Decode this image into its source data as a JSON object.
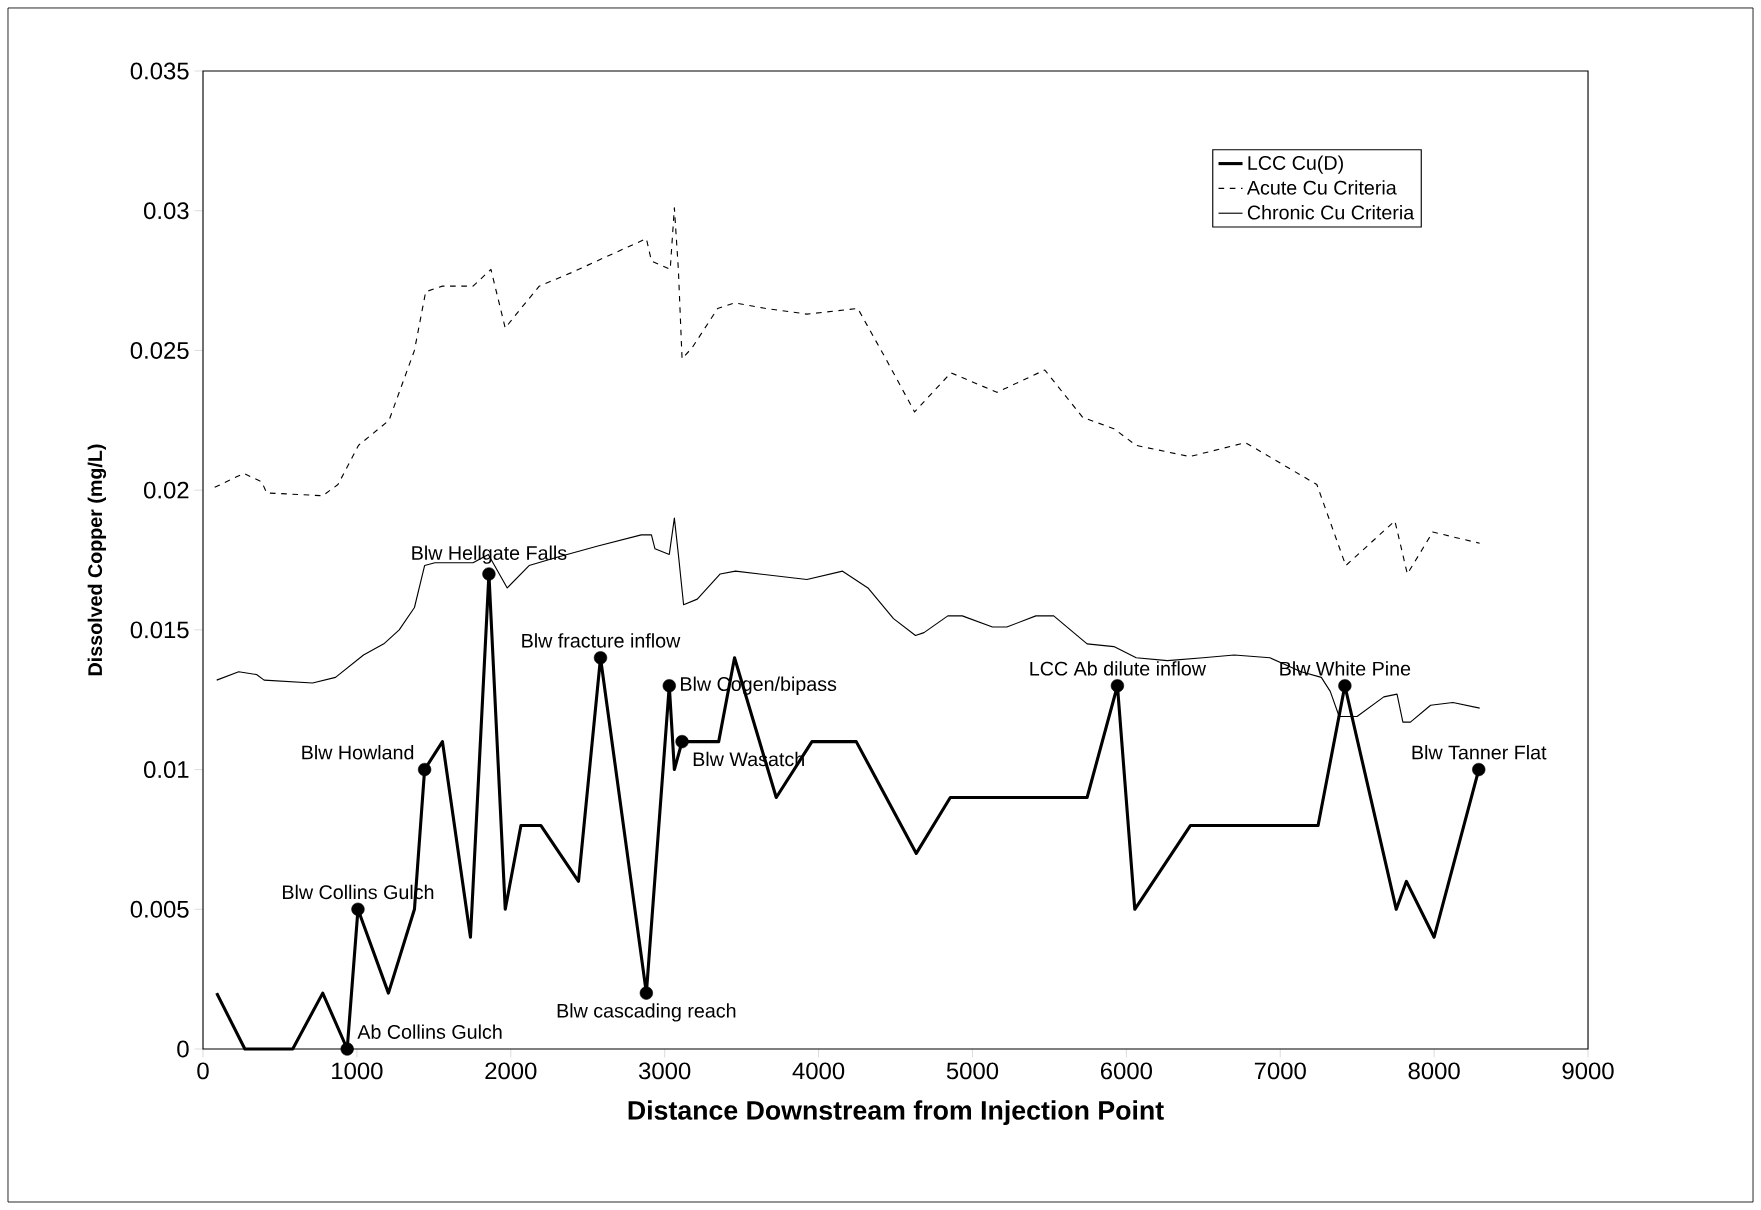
{
  "chart_data": {
    "type": "line",
    "xlabel": "Distance Downstream from Injection Point",
    "ylabel": "Dissolved Copper (mg/L)",
    "xlim": [
      0,
      9000
    ],
    "xticks": [
      0,
      1000,
      2000,
      3000,
      4000,
      5000,
      6000,
      7000,
      8000,
      9000
    ],
    "ylim": [
      0,
      0.035
    ],
    "yticks": [
      0,
      0.005,
      0.01,
      0.015,
      0.02,
      0.025,
      0.03,
      0.035
    ],
    "grid": false,
    "legend": "top right",
    "marker": "none",
    "series": [
      {
        "name": "LCC Cu(D)",
        "color": "#000000",
        "line_style": "solid",
        "x": [
          89,
          272,
          583,
          778,
          937,
          1007,
          1205,
          1374,
          1440,
          1556,
          1738,
          1858,
          1964,
          2066,
          2195,
          2440,
          2583,
          2881,
          3030,
          3063,
          3113,
          3351,
          3454,
          3725,
          3957,
          4245,
          4635,
          4856,
          5745,
          5942,
          6055,
          6417,
          7246,
          7420,
          7754,
          7820,
          8000,
          8290
        ],
        "values": [
          0.002,
          0,
          0,
          0.002,
          0,
          0.005,
          0.002,
          0.005,
          0.01,
          0.011,
          0.004,
          0.017,
          0.005,
          0.008,
          0.008,
          0.006,
          0.014,
          0.002,
          0.013,
          0.01,
          0.011,
          0.011,
          0.014,
          0.009,
          0.011,
          0.011,
          0.007,
          0.009,
          0.009,
          0.013,
          0.005,
          0.008,
          0.008,
          0.013,
          0.005,
          0.006,
          0.004,
          0.01
        ]
      },
      {
        "name": "Acute Cu Criteria",
        "color": "#000000",
        "line_style": "dashed",
        "x": [
          76,
          265,
          381,
          414,
          778,
          877,
          1010,
          1209,
          1374,
          1447,
          1556,
          1755,
          1871,
          1964,
          2036,
          2185,
          2401,
          2599,
          2881,
          2914,
          3036,
          3063,
          3089,
          3113,
          3179,
          3344,
          3454,
          3659,
          3924,
          4255,
          4437,
          4624,
          4860,
          5159,
          5470,
          5717,
          5919,
          6064,
          6412,
          6774,
          7238,
          7426,
          7745,
          7826,
          7991,
          8296
        ],
        "values": [
          0.0201,
          0.0206,
          0.0203,
          0.0199,
          0.0198,
          0.0202,
          0.0216,
          0.0225,
          0.025,
          0.0271,
          0.0273,
          0.0273,
          0.0279,
          0.0258,
          0.0263,
          0.0273,
          0.0278,
          0.0283,
          0.029,
          0.0282,
          0.0279,
          0.0301,
          0.0279,
          0.0247,
          0.0251,
          0.0265,
          0.0267,
          0.0265,
          0.0263,
          0.0265,
          0.0247,
          0.0228,
          0.0242,
          0.0235,
          0.0243,
          0.0226,
          0.0222,
          0.0216,
          0.0212,
          0.0217,
          0.0202,
          0.0173,
          0.0189,
          0.017,
          0.0185,
          0.0181
        ]
      },
      {
        "name": "Chronic Cu Criteria",
        "color": "#000000",
        "line_style": "solid",
        "x": [
          89,
          232,
          348,
          397,
          712,
          861,
          1043,
          1175,
          1275,
          1374,
          1440,
          1507,
          1755,
          1854,
          1977,
          2119,
          2301,
          2566,
          2848,
          2914,
          2937,
          3030,
          3063,
          3089,
          3123,
          3212,
          3361,
          3460,
          3924,
          4156,
          4321,
          4487,
          4630,
          4685,
          4840,
          4934,
          5130,
          5223,
          5412,
          5528,
          5745,
          5919,
          6064,
          6267,
          6499,
          6701,
          6933,
          7136,
          7267,
          7325,
          7383,
          7499,
          7673,
          7759,
          7797,
          7846,
          7977,
          8122,
          8296
        ],
        "values": [
          0.0132,
          0.0135,
          0.0134,
          0.0132,
          0.0131,
          0.0133,
          0.0141,
          0.0145,
          0.015,
          0.0158,
          0.0173,
          0.0174,
          0.0174,
          0.0177,
          0.0165,
          0.0173,
          0.0176,
          0.018,
          0.0184,
          0.0184,
          0.0179,
          0.0177,
          0.019,
          0.0177,
          0.0159,
          0.0161,
          0.017,
          0.0171,
          0.0168,
          0.0171,
          0.0165,
          0.0154,
          0.0148,
          0.0149,
          0.0155,
          0.0155,
          0.0151,
          0.0151,
          0.0155,
          0.0155,
          0.0145,
          0.0144,
          0.014,
          0.0139,
          0.014,
          0.0141,
          0.014,
          0.0135,
          0.0133,
          0.0128,
          0.0119,
          0.0119,
          0.0126,
          0.0127,
          0.0117,
          0.0117,
          0.0123,
          0.0124,
          0.0122
        ]
      },
      {
        "type": "scatter",
        "color": "#000000",
        "marker": "circle",
        "x": [
          937,
          1007,
          1440,
          1858,
          2583,
          2881,
          3030,
          3113,
          5942,
          7420,
          8290
        ],
        "values": [
          0,
          0.005,
          0.01,
          0.017,
          0.014,
          0.002,
          0.013,
          0.011,
          0.013,
          0.013,
          0.01
        ]
      }
    ],
    "annotations": [
      {
        "text": "Ab Collins Gulch",
        "x": 937,
        "y": 0
      },
      {
        "text": "Blw Collins Gulch",
        "x": 1007,
        "y": 0.005
      },
      {
        "text": "Blw Howland",
        "x": 1440,
        "y": 0.01
      },
      {
        "text": "Blw Hellgate Falls",
        "x": 1858,
        "y": 0.017
      },
      {
        "text": "Blw fracture inflow",
        "x": 2583,
        "y": 0.014
      },
      {
        "text": "Blw cascading reach",
        "x": 2881,
        "y": 0.002
      },
      {
        "text": "Blw Cogen/bipass",
        "x": 3030,
        "y": 0.013
      },
      {
        "text": "Blw Wasatch",
        "x": 3113,
        "y": 0.011
      },
      {
        "text": "LCC Ab dilute inflow",
        "x": 5942,
        "y": 0.013
      },
      {
        "text": "Blw White Pine",
        "x": 7420,
        "y": 0.013
      },
      {
        "text": "Blw Tanner Flat",
        "x": 8290,
        "y": 0.01
      }
    ]
  }
}
